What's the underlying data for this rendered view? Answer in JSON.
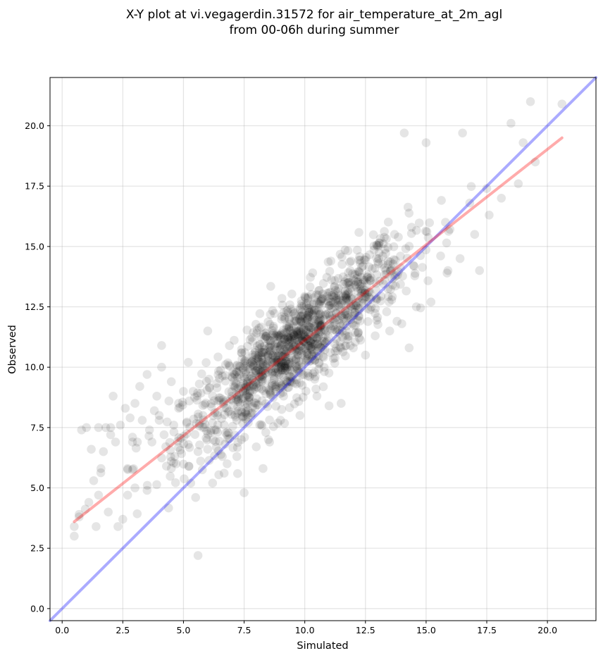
{
  "chart_data": {
    "type": "scatter",
    "title_lines": [
      "X-Y plot at vi.vegagerdin.31572 for air_temperature_at_2m_agl",
      "from 00-06h during summer"
    ],
    "xlabel": "Simulated",
    "ylabel": "Observed",
    "xlim": [
      -0.5,
      22.0
    ],
    "ylim": [
      -0.5,
      22.0
    ],
    "xticks": [
      0.0,
      2.5,
      5.0,
      7.5,
      10.0,
      12.5,
      15.0,
      17.5,
      20.0
    ],
    "yticks": [
      0.0,
      2.5,
      5.0,
      7.5,
      10.0,
      12.5,
      15.0,
      17.5,
      20.0
    ],
    "xtick_labels": [
      "0.0",
      "2.5",
      "5.0",
      "7.5",
      "10.0",
      "12.5",
      "15.0",
      "17.5",
      "20.0"
    ],
    "ytick_labels": [
      "0.0",
      "2.5",
      "5.0",
      "7.5",
      "10.0",
      "12.5",
      "15.0",
      "17.5",
      "20.0"
    ],
    "grid": true,
    "point_color": "#000000",
    "point_alpha": 0.1,
    "series": [
      {
        "kind": "points",
        "x": [
          0.5,
          0.5,
          0.7,
          0.8,
          1.0,
          1.2,
          1.3,
          1.4,
          1.5,
          1.6,
          1.7,
          1.8,
          1.9,
          2.0,
          2.1,
          2.2,
          2.3,
          2.4,
          2.5,
          2.6,
          2.7,
          2.8,
          2.9,
          3.0,
          3.1,
          3.2,
          3.3,
          3.5,
          3.6,
          3.7,
          3.8,
          3.9,
          4.0,
          4.1,
          4.2,
          4.3,
          4.4,
          4.5,
          4.6,
          4.8,
          5.0,
          5.2,
          5.4,
          5.6,
          5.8,
          6.0,
          4.1,
          4.5,
          4.0,
          3.5,
          2.9,
          2.0,
          1.5,
          1.1,
          0.7,
          5.6,
          7.5,
          14.1,
          15.0,
          16.5,
          18.5,
          19.0,
          19.3,
          20.6,
          17.2,
          17.5,
          16.8,
          15.8,
          14.4,
          13.7,
          13.0,
          12.4,
          11.8,
          11.2,
          10.6,
          10.0,
          9.4,
          8.8,
          8.2,
          7.6,
          7.0,
          6.4,
          5.8,
          5.2,
          12.0,
          12.5,
          13.5,
          14.0,
          14.6,
          15.2,
          15.9,
          16.4,
          17.0,
          17.6,
          18.1,
          18.8,
          19.5,
          11.0,
          10.5,
          9.0,
          8.5,
          8.0,
          7.2,
          6.8,
          6.2,
          5.5,
          3.0,
          2.7,
          4.7,
          5.3,
          6.6,
          9.8,
          12.9,
          13.8,
          14.3,
          11.5,
          10.2
        ],
        "y": [
          3.0,
          3.4,
          3.8,
          7.4,
          7.5,
          6.6,
          5.3,
          3.4,
          7.5,
          5.8,
          6.5,
          7.5,
          4.0,
          7.5,
          8.8,
          6.9,
          3.4,
          7.6,
          3.7,
          8.3,
          5.8,
          7.9,
          7.1,
          8.5,
          6.9,
          9.2,
          7.8,
          9.7,
          7.4,
          6.9,
          8.2,
          8.8,
          8.0,
          10.0,
          7.2,
          5.9,
          8.6,
          9.4,
          7.6,
          8.3,
          9.0,
          10.2,
          9.0,
          2.2,
          8.0,
          11.5,
          10.9,
          6.1,
          7.8,
          4.9,
          6.9,
          7.2,
          4.7,
          4.4,
          3.9,
          6.5,
          4.8,
          19.7,
          19.3,
          19.7,
          20.1,
          19.3,
          21.0,
          20.9,
          14.0,
          17.4,
          16.8,
          16.0,
          15.8,
          15.5,
          15.0,
          14.2,
          13.5,
          13.0,
          12.6,
          12.0,
          11.2,
          10.4,
          9.8,
          9.2,
          8.8,
          8.0,
          7.5,
          6.8,
          10.8,
          10.5,
          11.5,
          11.8,
          12.5,
          12.7,
          14.0,
          14.5,
          15.5,
          16.3,
          17.0,
          17.6,
          18.5,
          8.4,
          8.8,
          7.8,
          7.0,
          6.7,
          6.3,
          6.0,
          5.2,
          4.6,
          5.0,
          4.7,
          6.0,
          5.2,
          6.3,
          8.0,
          11.3,
          11.9,
          10.8,
          8.5,
          9.6
        ]
      },
      {
        "kind": "cloud",
        "count": 1250,
        "x_mean": 9.6,
        "x_sd": 2.3,
        "slope": 0.8,
        "intercept": 3.2,
        "residual_sd": 1.0
      }
    ],
    "lines": [
      {
        "kind": "identity",
        "color": "#0000ff",
        "alpha": 0.33,
        "x": [
          -0.5,
          22.0
        ],
        "y": [
          -0.5,
          22.0
        ]
      },
      {
        "kind": "fit",
        "color": "#ff0000",
        "alpha": 0.33,
        "x": [
          0.5,
          20.6
        ],
        "y": [
          3.6,
          19.5
        ]
      }
    ]
  }
}
